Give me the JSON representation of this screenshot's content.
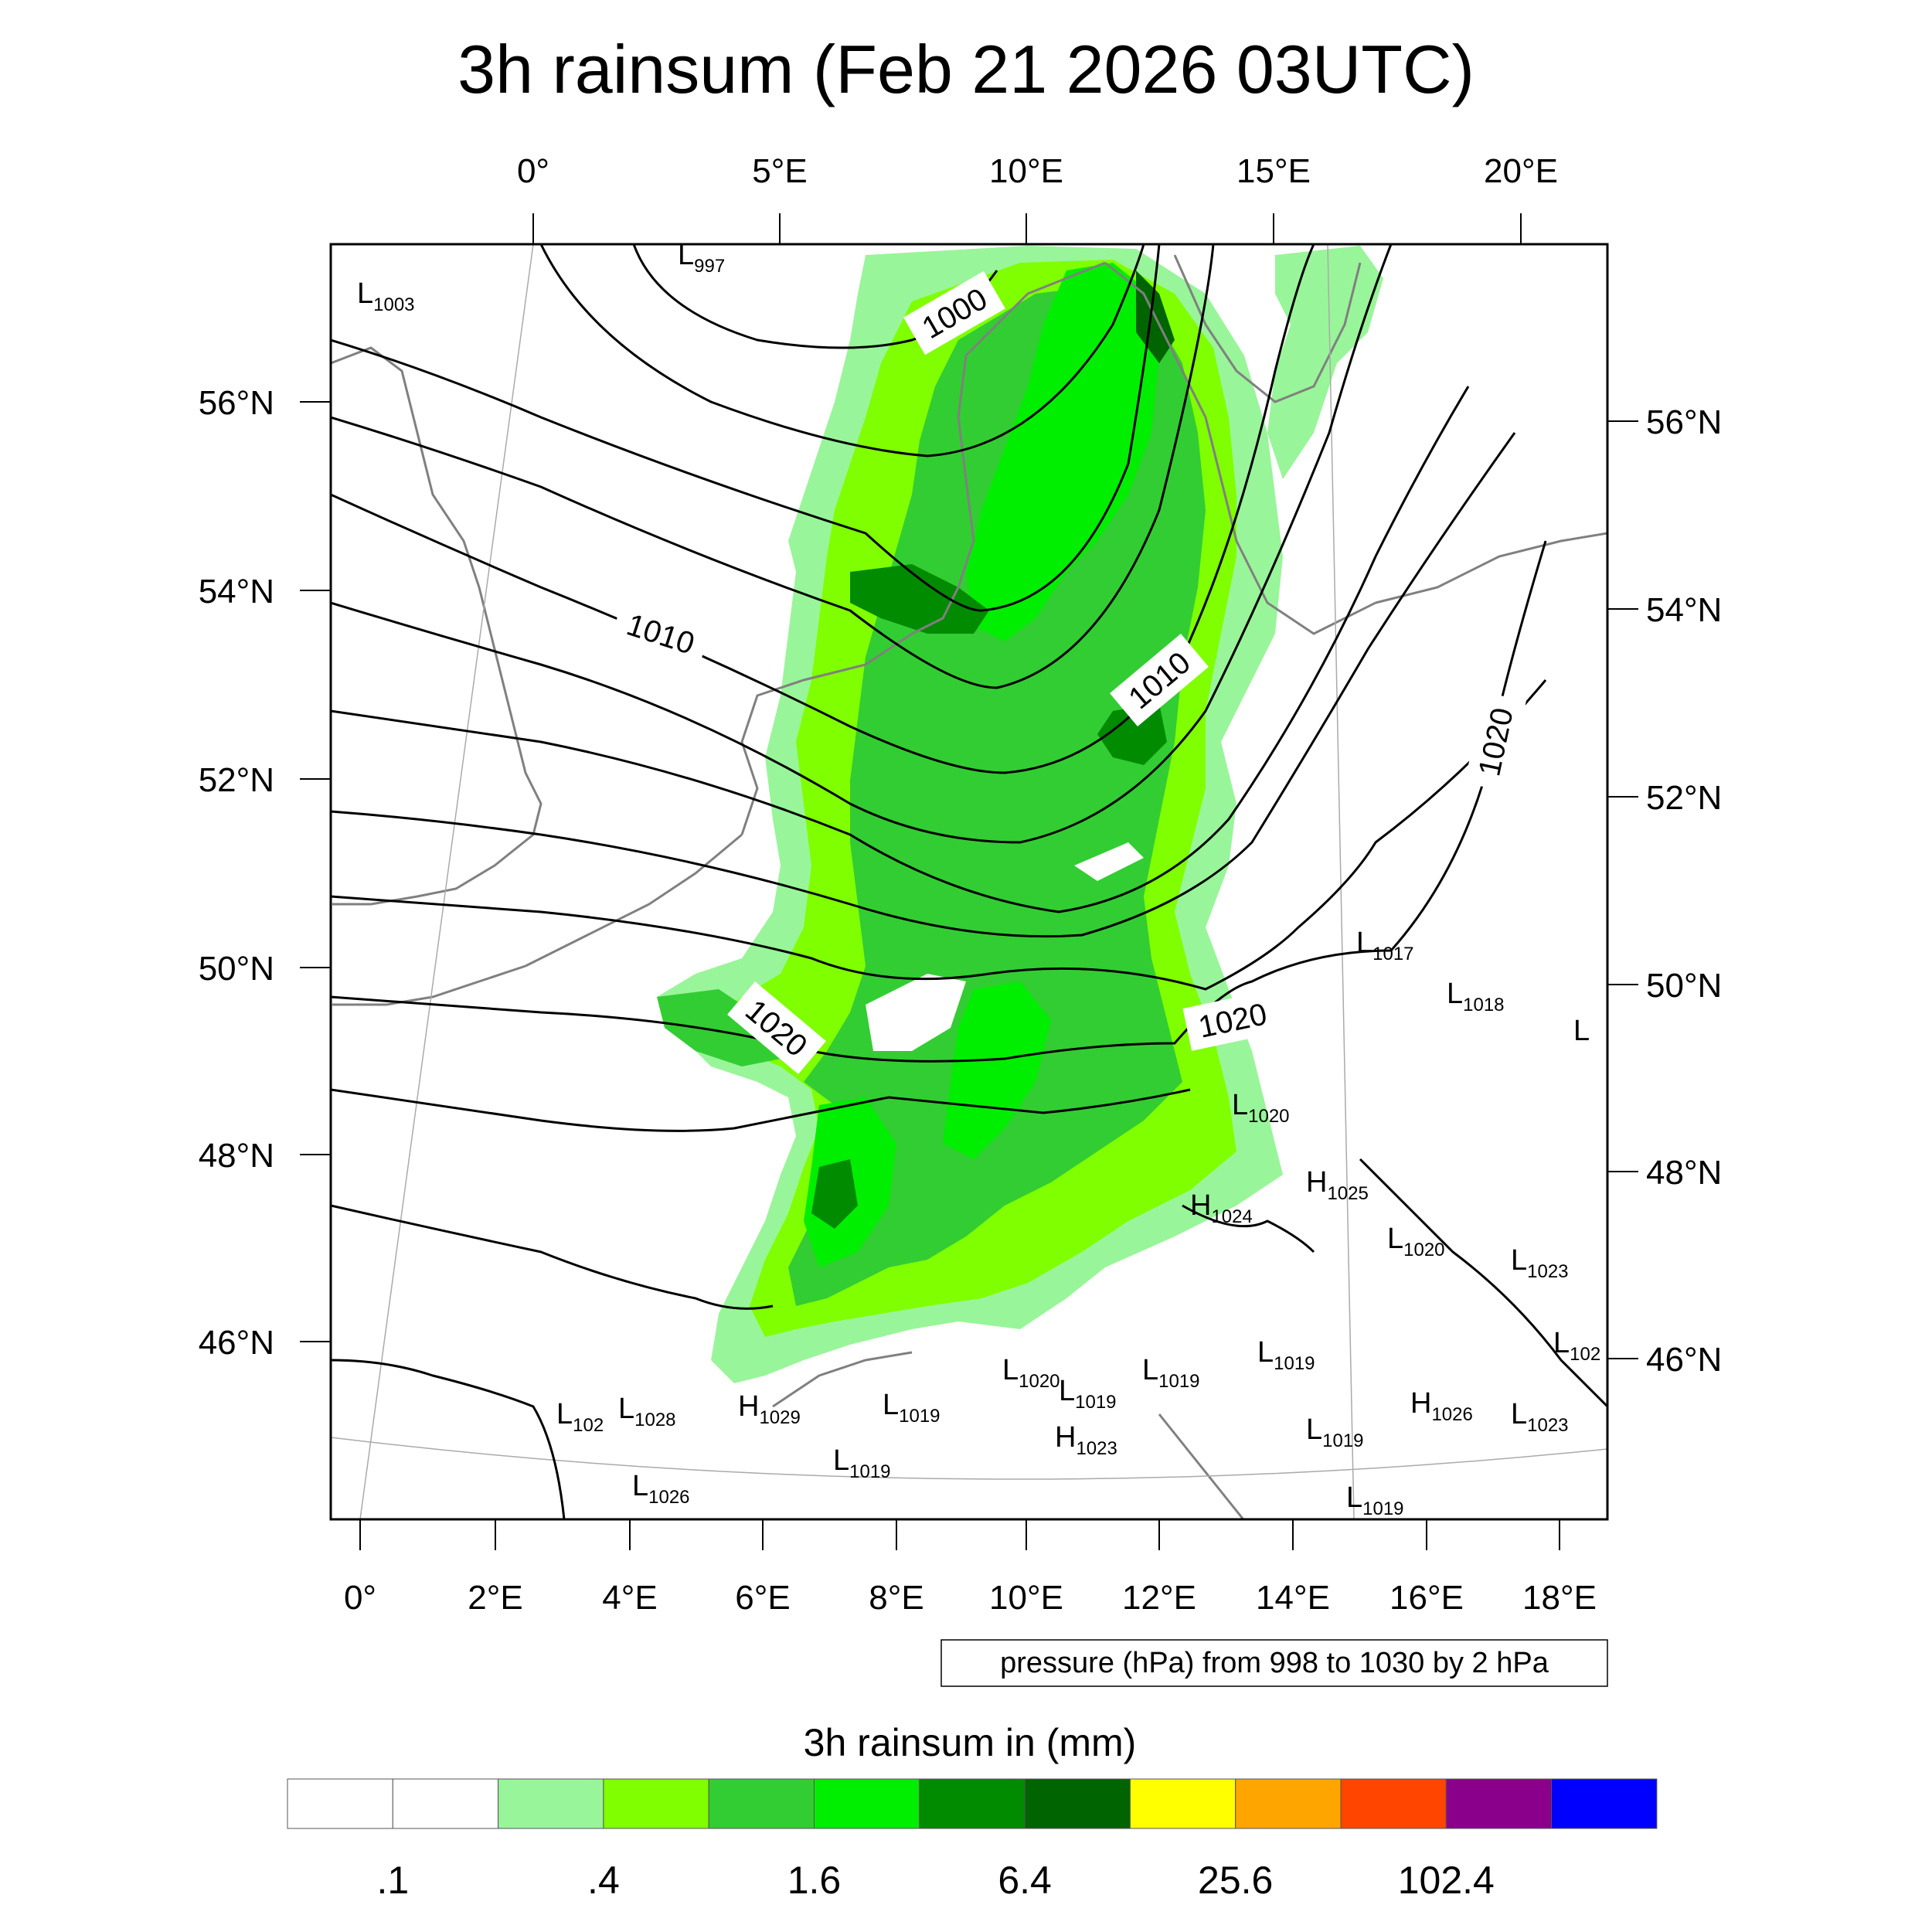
{
  "title": "3h rainsum (Feb 21 2026 03UTC)",
  "top_lon_labels": [
    "0°",
    "5°E",
    "10°E",
    "15°E",
    "20°E"
  ],
  "bottom_lon_labels": [
    "0°",
    "2°E",
    "4°E",
    "6°E",
    "8°E",
    "10°E",
    "12°E",
    "14°E",
    "16°E",
    "18°E"
  ],
  "left_lat_labels": [
    "56°N",
    "54°N",
    "52°N",
    "50°N",
    "48°N",
    "46°N"
  ],
  "right_lat_labels": [
    "56°N",
    "54°N",
    "52°N",
    "50°N",
    "48°N",
    "46°N"
  ],
  "isobar_labels": [
    "1000",
    "1010",
    "1010",
    "1020",
    "1020",
    "1020"
  ],
  "pressure_centers": [
    {
      "type": "L",
      "value": "997"
    },
    {
      "type": "L",
      "value": "1003"
    },
    {
      "type": "L",
      "value": "1017"
    },
    {
      "type": "L",
      "value": "1018"
    },
    {
      "type": "L",
      "value": ""
    },
    {
      "type": "L",
      "value": "1020"
    },
    {
      "type": "H",
      "value": "1025"
    },
    {
      "type": "H",
      "value": "1024"
    },
    {
      "type": "L",
      "value": "1020"
    },
    {
      "type": "L",
      "value": "1023"
    },
    {
      "type": "L",
      "value": "102"
    },
    {
      "type": "L",
      "value": "1019"
    },
    {
      "type": "L",
      "value": "1019"
    },
    {
      "type": "L",
      "value": "1020"
    },
    {
      "type": "L",
      "value": "1019"
    },
    {
      "type": "H",
      "value": "1026"
    },
    {
      "type": "L",
      "value": "1023"
    },
    {
      "type": "L",
      "value": "102"
    },
    {
      "type": "L",
      "value": "1028"
    },
    {
      "type": "H",
      "value": "1029"
    },
    {
      "type": "L",
      "value": "1019"
    },
    {
      "type": "H",
      "value": "1023"
    },
    {
      "type": "L",
      "value": "1019"
    },
    {
      "type": "L",
      "value": "1019"
    },
    {
      "type": "L",
      "value": "1026"
    },
    {
      "type": "L",
      "value": "1019"
    }
  ],
  "contour_note": "pressure (hPa) from 998 to 1030 by 2 hPa",
  "legend_title": "3h rainsum in (mm)",
  "colorbar": {
    "colors": [
      "#ffffff",
      "#ffffff",
      "#99f599",
      "#7fff00",
      "#32cd32",
      "#00ee00",
      "#008b00",
      "#006400",
      "#ffff00",
      "#ffa500",
      "#ff4500",
      "#8b008b",
      "#0000ff"
    ],
    "labels": [
      ".1",
      ".4",
      "1.6",
      "6.4",
      "25.6",
      "102.4"
    ]
  },
  "colors": {
    "rain_light": "#99f599",
    "rain_chartreuse": "#7fff00",
    "rain_lime": "#32cd32",
    "rain_green": "#00ee00",
    "rain_dark": "#008b00",
    "rain_darkest": "#006400",
    "coast": "#808080"
  }
}
